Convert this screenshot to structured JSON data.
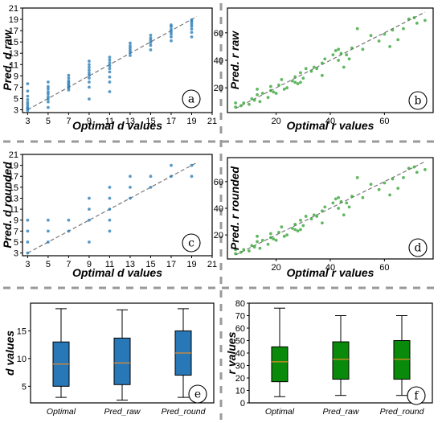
{
  "colors": {
    "blue": "#1f77b4",
    "green": "#2ca02c",
    "box_blue": "#2878b8",
    "box_green": "#0a8a0a",
    "median": "#e08a2a",
    "separator": "#9a9a9a"
  },
  "chart_data": [
    {
      "id": "a",
      "type": "scatter",
      "panel_label": "a",
      "xlabel": "Optimal d values",
      "ylabel": "Pred. d raw",
      "xlim": [
        2.5,
        21
      ],
      "ylim": [
        2.5,
        21
      ],
      "xticks": [
        3,
        5,
        7,
        9,
        11,
        13,
        15,
        17,
        19,
        21
      ],
      "yticks": [
        3,
        5,
        7,
        9,
        11,
        13,
        15,
        17,
        19,
        21
      ],
      "diagonal": true,
      "color": "blue",
      "points": [
        [
          3,
          2.9
        ],
        [
          3,
          3.2
        ],
        [
          3,
          3.5
        ],
        [
          3,
          3.9
        ],
        [
          3,
          4.3
        ],
        [
          3,
          4.8
        ],
        [
          3,
          5.4
        ],
        [
          3,
          6.3
        ],
        [
          3,
          7.6
        ],
        [
          5,
          3.4
        ],
        [
          5,
          4.4
        ],
        [
          5,
          4.9
        ],
        [
          5,
          5.3
        ],
        [
          5,
          5.8
        ],
        [
          5,
          6.2
        ],
        [
          5,
          6.7
        ],
        [
          5,
          7.1
        ],
        [
          5,
          7.9
        ],
        [
          7,
          6.5
        ],
        [
          7,
          6.9
        ],
        [
          7,
          7.2
        ],
        [
          7,
          7.5
        ],
        [
          7,
          7.8
        ],
        [
          7,
          8.1
        ],
        [
          7,
          8.6
        ],
        [
          7,
          9.1
        ],
        [
          9,
          4.9
        ],
        [
          9,
          7.0
        ],
        [
          9,
          7.9
        ],
        [
          9,
          8.6
        ],
        [
          9,
          9.1
        ],
        [
          9,
          9.5
        ],
        [
          9,
          10.0
        ],
        [
          9,
          10.5
        ],
        [
          9,
          11.0
        ],
        [
          9,
          11.6
        ],
        [
          11,
          6.2
        ],
        [
          11,
          7.9
        ],
        [
          11,
          8.8
        ],
        [
          11,
          9.7
        ],
        [
          11,
          10.3
        ],
        [
          11,
          10.8
        ],
        [
          11,
          11.3
        ],
        [
          11,
          11.8
        ],
        [
          11,
          12.3
        ],
        [
          13,
          12.6
        ],
        [
          13,
          13.1
        ],
        [
          13,
          13.5
        ],
        [
          13,
          13.9
        ],
        [
          13,
          14.3
        ],
        [
          13,
          14.8
        ],
        [
          15,
          13.6
        ],
        [
          15,
          14.4
        ],
        [
          15,
          14.9
        ],
        [
          15,
          15.3
        ],
        [
          15,
          15.7
        ],
        [
          15,
          16.2
        ],
        [
          17,
          15.2
        ],
        [
          17,
          15.9
        ],
        [
          17,
          16.4
        ],
        [
          17,
          16.8
        ],
        [
          17,
          17.2
        ],
        [
          17,
          17.7
        ],
        [
          17,
          18.0
        ],
        [
          19,
          15.9
        ],
        [
          19,
          16.7
        ],
        [
          19,
          17.3
        ],
        [
          19,
          17.8
        ],
        [
          19,
          18.2
        ],
        [
          19,
          18.6
        ],
        [
          19,
          18.9
        ]
      ]
    },
    {
      "id": "b",
      "type": "scatter",
      "panel_label": "b",
      "xlabel": "Optimal r values",
      "ylabel": "Pred. r raw",
      "xlim": [
        2,
        78
      ],
      "ylim": [
        2,
        78
      ],
      "xticks": [
        20,
        40,
        60
      ],
      "yticks": [
        20,
        40,
        60
      ],
      "diagonal": true,
      "color": "green",
      "points": [
        [
          5,
          6
        ],
        [
          5,
          9
        ],
        [
          7,
          7
        ],
        [
          8,
          9
        ],
        [
          10,
          8
        ],
        [
          11,
          12
        ],
        [
          12,
          11
        ],
        [
          13,
          15
        ],
        [
          13,
          19
        ],
        [
          14,
          10
        ],
        [
          15,
          16
        ],
        [
          17,
          13
        ],
        [
          18,
          18
        ],
        [
          18,
          21
        ],
        [
          19,
          17
        ],
        [
          20,
          16
        ],
        [
          21,
          22
        ],
        [
          22,
          26
        ],
        [
          23,
          19
        ],
        [
          24,
          20
        ],
        [
          26,
          25
        ],
        [
          27,
          24
        ],
        [
          27,
          28
        ],
        [
          28,
          23
        ],
        [
          29,
          24
        ],
        [
          29,
          31
        ],
        [
          30,
          27
        ],
        [
          31,
          34
        ],
        [
          33,
          32
        ],
        [
          34,
          35
        ],
        [
          35,
          34
        ],
        [
          37,
          38
        ],
        [
          37,
          29
        ],
        [
          38,
          41
        ],
        [
          41,
          44
        ],
        [
          42,
          47
        ],
        [
          43,
          48
        ],
        [
          43,
          40
        ],
        [
          44,
          45
        ],
        [
          45,
          35
        ],
        [
          46,
          44
        ],
        [
          47,
          41
        ],
        [
          48,
          49
        ],
        [
          50,
          63
        ],
        [
          52,
          48
        ],
        [
          55,
          58
        ],
        [
          58,
          54
        ],
        [
          60,
          59
        ],
        [
          62,
          50
        ],
        [
          63,
          62
        ],
        [
          65,
          55
        ],
        [
          67,
          63
        ],
        [
          69,
          70
        ],
        [
          71,
          71
        ],
        [
          72,
          67
        ],
        [
          75,
          69
        ]
      ]
    },
    {
      "id": "c",
      "type": "scatter",
      "panel_label": "c",
      "xlabel": "Optimal d values",
      "ylabel": "Pred. d rounded",
      "xlim": [
        2.5,
        21
      ],
      "ylim": [
        2.5,
        21
      ],
      "xticks": [
        3,
        5,
        7,
        9,
        11,
        13,
        15,
        17,
        19,
        21
      ],
      "yticks": [
        3,
        5,
        7,
        9,
        11,
        13,
        15,
        17,
        19,
        21
      ],
      "diagonal": true,
      "color": "blue",
      "points": [
        [
          3,
          3
        ],
        [
          3,
          5
        ],
        [
          3,
          7
        ],
        [
          3,
          9
        ],
        [
          5,
          5
        ],
        [
          5,
          7
        ],
        [
          5,
          9
        ],
        [
          7,
          7
        ],
        [
          7,
          9
        ],
        [
          9,
          5
        ],
        [
          9,
          9
        ],
        [
          9,
          11
        ],
        [
          9,
          13
        ],
        [
          11,
          7
        ],
        [
          11,
          9
        ],
        [
          11,
          11
        ],
        [
          11,
          13
        ],
        [
          11,
          15
        ],
        [
          13,
          13
        ],
        [
          13,
          15
        ],
        [
          13,
          17
        ],
        [
          15,
          15
        ],
        [
          15,
          17
        ],
        [
          17,
          17
        ],
        [
          17,
          19
        ],
        [
          19,
          17
        ],
        [
          19,
          19
        ]
      ]
    },
    {
      "id": "d",
      "type": "scatter",
      "panel_label": "d",
      "xlabel": "Optimal r values",
      "ylabel": "Pred. r rounded",
      "xlim": [
        2,
        78
      ],
      "ylim": [
        2,
        78
      ],
      "xticks": [
        20,
        40,
        60
      ],
      "yticks": [
        20,
        40,
        60
      ],
      "diagonal": true,
      "color": "green",
      "points": [
        [
          5,
          6
        ],
        [
          5,
          9
        ],
        [
          7,
          7
        ],
        [
          8,
          9
        ],
        [
          10,
          8
        ],
        [
          11,
          12
        ],
        [
          12,
          11
        ],
        [
          13,
          15
        ],
        [
          13,
          19
        ],
        [
          14,
          10
        ],
        [
          15,
          16
        ],
        [
          17,
          13
        ],
        [
          18,
          18
        ],
        [
          18,
          21
        ],
        [
          19,
          17
        ],
        [
          20,
          16
        ],
        [
          21,
          22
        ],
        [
          22,
          26
        ],
        [
          23,
          19
        ],
        [
          24,
          20
        ],
        [
          26,
          25
        ],
        [
          27,
          24
        ],
        [
          27,
          28
        ],
        [
          28,
          23
        ],
        [
          29,
          24
        ],
        [
          29,
          31
        ],
        [
          30,
          27
        ],
        [
          31,
          34
        ],
        [
          33,
          32
        ],
        [
          34,
          35
        ],
        [
          35,
          34
        ],
        [
          37,
          38
        ],
        [
          37,
          29
        ],
        [
          38,
          41
        ],
        [
          41,
          44
        ],
        [
          42,
          47
        ],
        [
          43,
          48
        ],
        [
          43,
          40
        ],
        [
          44,
          45
        ],
        [
          45,
          35
        ],
        [
          46,
          44
        ],
        [
          47,
          41
        ],
        [
          48,
          49
        ],
        [
          50,
          63
        ],
        [
          52,
          48
        ],
        [
          55,
          58
        ],
        [
          58,
          54
        ],
        [
          60,
          59
        ],
        [
          62,
          50
        ],
        [
          63,
          62
        ],
        [
          65,
          55
        ],
        [
          67,
          63
        ],
        [
          69,
          70
        ],
        [
          71,
          71
        ],
        [
          72,
          67
        ],
        [
          75,
          69
        ]
      ]
    },
    {
      "id": "e",
      "type": "box",
      "panel_label": "e",
      "ylabel": "d values",
      "ylim": [
        2,
        20
      ],
      "yticks": [
        5,
        10,
        15
      ],
      "categories": [
        "Optimal",
        "Pred_raw",
        "Pred_round"
      ],
      "color": "box_blue",
      "boxes": [
        {
          "min": 3,
          "q1": 5,
          "median": 9,
          "q3": 13,
          "max": 19
        },
        {
          "min": 2.5,
          "q1": 5.3,
          "median": 9.2,
          "q3": 13.7,
          "max": 18.8
        },
        {
          "min": 3,
          "q1": 7,
          "median": 11,
          "q3": 15,
          "max": 19
        }
      ]
    },
    {
      "id": "f",
      "type": "box",
      "panel_label": "f",
      "ylabel": "r values",
      "ylim": [
        0,
        80
      ],
      "yticks": [
        0,
        10,
        20,
        30,
        40,
        50,
        60,
        70,
        80
      ],
      "categories": [
        "Optimal",
        "Pred_raw",
        "Pred_round"
      ],
      "color": "box_green",
      "boxes": [
        {
          "min": 5,
          "q1": 17,
          "median": 33,
          "q3": 45,
          "max": 76
        },
        {
          "min": 6,
          "q1": 19,
          "median": 35,
          "q3": 49,
          "max": 70
        },
        {
          "min": 6,
          "q1": 19,
          "median": 35,
          "q3": 50,
          "max": 70
        }
      ]
    }
  ]
}
